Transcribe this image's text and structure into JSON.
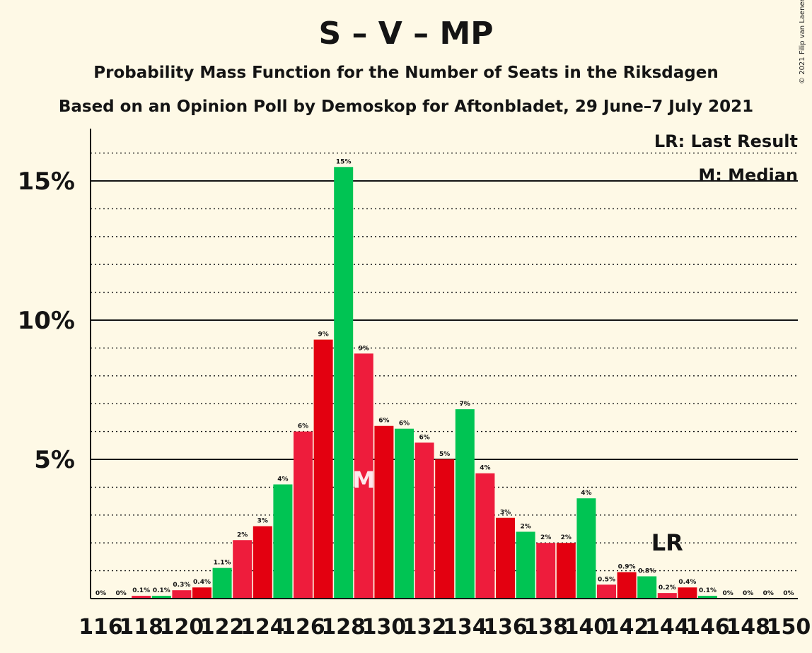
{
  "header": {
    "title": "S – V – MP",
    "subtitle1": "Probability Mass Function for the Number of Seats in the Riksdagen",
    "subtitle2": "Based on an Opinion Poll by Demoskop for Aftonbladet, 29 June–7 July 2021",
    "copyright": "© 2021 Filip van Laenen"
  },
  "legend": {
    "lr": "LR: Last Result",
    "m": "M: Median"
  },
  "colors": {
    "background": "#fef9e6",
    "green": "#00c453",
    "red_light": "#ee1c3c",
    "red_dark": "#e30010",
    "axis": "#141414"
  },
  "chart_data": {
    "type": "bar",
    "categories": [
      116,
      117,
      118,
      119,
      120,
      121,
      122,
      123,
      124,
      125,
      126,
      127,
      128,
      129,
      130,
      131,
      132,
      133,
      134,
      135,
      136,
      137,
      138,
      139,
      140,
      141,
      142,
      143,
      144,
      145,
      146,
      147,
      148,
      149,
      150
    ],
    "values": [
      0,
      0,
      0.1,
      0.1,
      0.3,
      0.4,
      1.1,
      2.1,
      2.6,
      4.1,
      6.0,
      9.3,
      15.5,
      8.8,
      6.2,
      6.1,
      5.6,
      5.0,
      6.8,
      4.5,
      2.9,
      2.4,
      2.0,
      2.0,
      3.6,
      0.5,
      0.95,
      0.8,
      0.2,
      0.4,
      0.1,
      0,
      0,
      0,
      0
    ],
    "data_labels": [
      "0%",
      "0%",
      "0.1%",
      "0.1%",
      "0.3%",
      "0.4%",
      "1.1%",
      "2%",
      "3%",
      "4%",
      "6%",
      "9%",
      "15%",
      "9%",
      "6%",
      "6%",
      "6%",
      "5%",
      "7%",
      "4%",
      "3%",
      "2%",
      "2%",
      "2%",
      "4%",
      "0.5%",
      "0.9%",
      "0.8%",
      "0.2%",
      "0.4%",
      "0.1%",
      "0%",
      "0%",
      "0%",
      "0%"
    ],
    "bar_colors": [
      "red_light",
      "red_dark",
      "red_light",
      "green",
      "red_light",
      "red_dark",
      "green",
      "red_light",
      "red_dark",
      "green",
      "red_light",
      "red_dark",
      "green",
      "red_light",
      "red_dark",
      "green",
      "red_light",
      "red_dark",
      "green",
      "red_light",
      "red_dark",
      "green",
      "red_light",
      "red_dark",
      "green",
      "red_light",
      "red_dark",
      "green",
      "red_light",
      "red_dark",
      "green",
      "red_light",
      "red_dark",
      "green",
      "red_light"
    ],
    "x_tick_labels": [
      "116",
      "118",
      "120",
      "122",
      "124",
      "126",
      "128",
      "130",
      "132",
      "134",
      "136",
      "138",
      "140",
      "142",
      "144",
      "146",
      "148",
      "150"
    ],
    "y_ticks": [
      5,
      10,
      15
    ],
    "y_tick_labels": [
      "5%",
      "10%",
      "15%"
    ],
    "ylim": [
      0,
      16.9
    ],
    "minor_gridlines_every": 1,
    "median_seat": 129,
    "median_marker": "M",
    "last_result_seat": 144,
    "last_result_marker": "LR"
  }
}
